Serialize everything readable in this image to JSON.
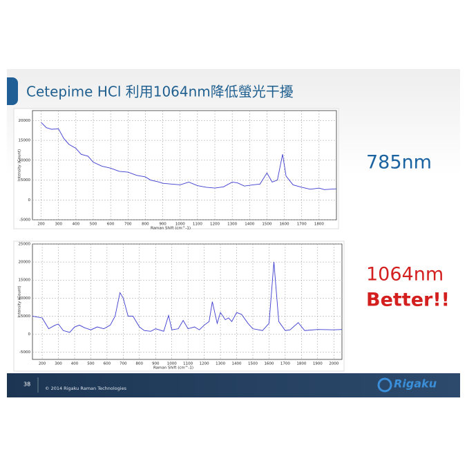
{
  "slide": {
    "title": "Cetepime HCl 利用1064nm降低螢光干擾",
    "page_number": "38",
    "footer": "© 2014 Rigaku Raman Technologies",
    "logo": "Rigaku",
    "label_785": "785nm",
    "label_1064": "1064nm",
    "label_better": "Better!!"
  },
  "chart_data": [
    {
      "type": "line",
      "x_label": "Raman Shift (cm^-1)",
      "y_label": "Intensity (Count)",
      "color": "#3b3bd0",
      "grid": true,
      "xlim": [
        150,
        1900
      ],
      "xticks": [
        200,
        300,
        400,
        500,
        600,
        700,
        800,
        900,
        1000,
        1100,
        1200,
        1300,
        1400,
        1500,
        1600,
        1700,
        1800
      ],
      "ylim": [
        -5000,
        22500
      ],
      "yticks": [
        -5000,
        0,
        5000,
        10000,
        15000,
        20000
      ],
      "x": [
        200,
        230,
        260,
        300,
        330,
        360,
        400,
        430,
        470,
        500,
        550,
        600,
        650,
        700,
        750,
        800,
        830,
        880,
        900,
        950,
        1000,
        1050,
        1100,
        1150,
        1200,
        1250,
        1300,
        1330,
        1370,
        1420,
        1460,
        1500,
        1530,
        1560,
        1590,
        1610,
        1650,
        1700,
        1750,
        1800,
        1830,
        1900
      ],
      "values": [
        19500,
        18200,
        17800,
        17900,
        15500,
        14000,
        13000,
        11500,
        11000,
        9500,
        8500,
        8000,
        7200,
        7000,
        6200,
        5800,
        5000,
        4500,
        4200,
        4000,
        3800,
        4500,
        3600,
        3200,
        3000,
        3300,
        4500,
        4300,
        3500,
        3800,
        4000,
        6800,
        4500,
        5000,
        11500,
        6000,
        3800,
        3200,
        2700,
        3000,
        2600,
        2800
      ]
    },
    {
      "type": "line",
      "x_label": "Raman Shift (cm^-1)",
      "y_label": "Intensity (Count)",
      "color": "#3b3bd0",
      "grid": true,
      "xlim": [
        140,
        2050
      ],
      "xticks": [
        200,
        300,
        400,
        500,
        600,
        700,
        800,
        900,
        1000,
        1100,
        1200,
        1300,
        1400,
        1500,
        1600,
        1700,
        1800,
        1900,
        2000
      ],
      "ylim": [
        -7000,
        25000
      ],
      "yticks": [
        -5000,
        0,
        5000,
        10000,
        15000,
        20000,
        25000
      ],
      "x": [
        140,
        200,
        240,
        280,
        300,
        330,
        370,
        400,
        430,
        460,
        500,
        540,
        580,
        620,
        650,
        680,
        700,
        730,
        760,
        800,
        830,
        870,
        900,
        950,
        980,
        1000,
        1040,
        1070,
        1100,
        1140,
        1170,
        1200,
        1230,
        1250,
        1280,
        1300,
        1330,
        1350,
        1370,
        1400,
        1430,
        1470,
        1500,
        1560,
        1600,
        1630,
        1660,
        1700,
        1730,
        1780,
        1820,
        1900,
        2000,
        2050
      ],
      "values": [
        5000,
        4500,
        1500,
        2500,
        2800,
        1000,
        500,
        2000,
        2500,
        1800,
        1200,
        2000,
        1500,
        2500,
        5000,
        11500,
        10000,
        5000,
        5000,
        2000,
        1000,
        800,
        1500,
        800,
        5200,
        1200,
        1500,
        3800,
        1500,
        2000,
        1200,
        2500,
        3500,
        9000,
        3000,
        6000,
        4000,
        4500,
        3500,
        6000,
        5500,
        3000,
        1500,
        1000,
        3000,
        20000,
        3500,
        1000,
        1200,
        3200,
        1000,
        1300,
        1200,
        1300
      ]
    }
  ]
}
